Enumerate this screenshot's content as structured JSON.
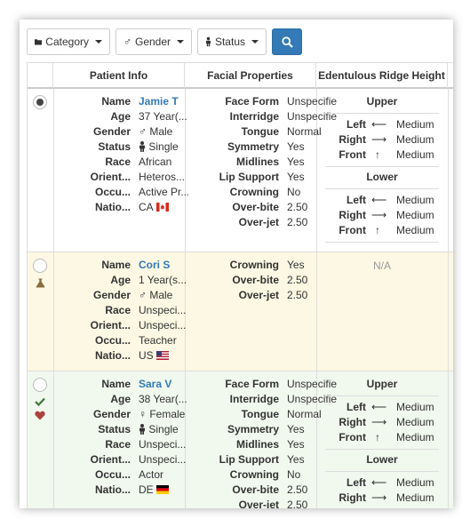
{
  "toolbar": {
    "category_label": "Category",
    "gender_label": "Gender",
    "status_label": "Status"
  },
  "headers": {
    "patient_info": "Patient Info",
    "facial_properties": "Facial Properties",
    "ridge_height": "Edentulous Ridge Height"
  },
  "labels": {
    "name": "Name",
    "age": "Age",
    "gender": "Gender",
    "status": "Status",
    "race": "Race",
    "orient": "Orient...",
    "occu": "Occu...",
    "natio": "Natio...",
    "face_form": "Face Form",
    "interridge": "Interridge",
    "tongue": "Tongue",
    "symmetry": "Symmetry",
    "midlines": "Midlines",
    "lip_support": "Lip Support",
    "crowning": "Crowning",
    "over_bite": "Over-bite",
    "over_jet": "Over-jet",
    "upper": "Upper",
    "lower": "Lower",
    "left": "Left",
    "right": "Right",
    "front": "Front"
  },
  "patients": [
    {
      "name": "Jamie T",
      "age": "37 Year(...",
      "gender": "Male",
      "status": "Single",
      "race": "African",
      "orient": "Heteros...",
      "occu": "Active Pr...",
      "natio": "CA",
      "face_form": "Unspecifie",
      "interridge": "Unspecifie",
      "tongue": "Normal",
      "symmetry": "Yes",
      "midlines": "Yes",
      "lip_support": "Yes",
      "crowning": "No",
      "over_bite": "2.50",
      "over_jet": "2.50",
      "upper_left": "Medium",
      "upper_right": "Medium",
      "upper_front": "Medium",
      "lower_left": "Medium",
      "lower_right": "Medium",
      "lower_front": "Medium"
    },
    {
      "name": "Cori S",
      "age": "1 Year(s...",
      "gender": "Male",
      "status": "",
      "race": "Unspeci...",
      "orient": "Unspeci...",
      "occu": "Teacher",
      "natio": "US",
      "crowning": "Yes",
      "over_bite": "2.50",
      "over_jet": "2.50",
      "ridge_na": "N/A"
    },
    {
      "name": "Sara V",
      "age": "38 Year(...",
      "gender": "Female",
      "status": "Single",
      "race": "Unspeci...",
      "orient": "Unspeci...",
      "occu": "Actor",
      "natio": "DE",
      "face_form": "Unspecifie",
      "interridge": "Unspecifie",
      "tongue": "Normal",
      "symmetry": "Yes",
      "midlines": "Yes",
      "lip_support": "Yes",
      "crowning": "No",
      "over_bite": "2.50",
      "over_jet": "2.50",
      "upper_left": "Medium",
      "upper_right": "Medium",
      "upper_front": "Medium",
      "lower_left": "Medium",
      "lower_right": "Medium"
    }
  ],
  "colors": {
    "row1_bg": "#ffffff",
    "row2_bg": "#fcf8e3",
    "row3_bg": "#f1f8ee",
    "link": "#337ab7",
    "check": "#3c763d",
    "heart": "#a94442",
    "flask": "#8a6d3b"
  }
}
